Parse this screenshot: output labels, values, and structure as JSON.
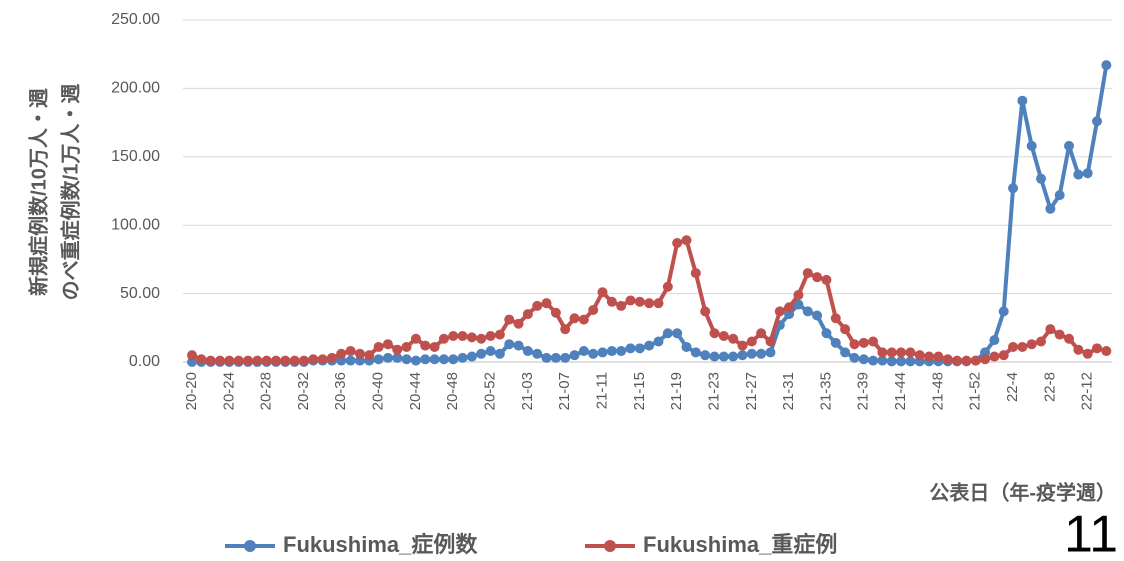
{
  "chart_data": {
    "type": "line",
    "y_axis_label": [
      "新規症例数/10万人・週",
      "のべ重症例数/1万人・週"
    ],
    "x_axis_label": "公表日（年-疫学週）",
    "page_number": "11",
    "categories": [
      "20-20",
      null,
      null,
      null,
      "20-24",
      null,
      null,
      null,
      "20-28",
      null,
      null,
      null,
      "20-32",
      null,
      null,
      null,
      "20-36",
      null,
      null,
      null,
      "20-40",
      null,
      null,
      null,
      "20-44",
      null,
      null,
      null,
      "20-48",
      null,
      null,
      null,
      "20-52",
      null,
      null,
      null,
      "21-03",
      null,
      null,
      null,
      "21-07",
      null,
      null,
      null,
      "21-11",
      null,
      null,
      null,
      "21-15",
      null,
      null,
      null,
      "21-19",
      null,
      null,
      null,
      "21-23",
      null,
      null,
      null,
      "21-27",
      null,
      null,
      null,
      "21-31",
      null,
      null,
      null,
      "21-35",
      null,
      null,
      null,
      "21-39",
      null,
      null,
      null,
      "21-44",
      null,
      null,
      null,
      "21-48",
      null,
      null,
      null,
      "21-52",
      null,
      null,
      null,
      "22-4",
      null,
      null,
      null,
      "22-8",
      null,
      null,
      null,
      "22-12",
      null,
      null
    ],
    "series": [
      {
        "name": "Fukushima_症例数",
        "color": "#4f81bd",
        "values": [
          0,
          0,
          0,
          0,
          0,
          0,
          0,
          0,
          0,
          0,
          0,
          0,
          0,
          1,
          1,
          1,
          1,
          1,
          1,
          1,
          2,
          3,
          3,
          2,
          1,
          2,
          2,
          2,
          2,
          3,
          4,
          6,
          8,
          6,
          13,
          12,
          8,
          6,
          3,
          3,
          3,
          5,
          8,
          6,
          7,
          8,
          8,
          10,
          10,
          12,
          15,
          21,
          21,
          11,
          7,
          5,
          4,
          4,
          4,
          5,
          6,
          6,
          7,
          27,
          35,
          42,
          37,
          34,
          21,
          14,
          7,
          3,
          2,
          1,
          1,
          0.5,
          0.5,
          0.5,
          0.5,
          0.5,
          0.5,
          0.5,
          0.5,
          0.5,
          1,
          7,
          16,
          37,
          127,
          191,
          158,
          134,
          112,
          122,
          158,
          137,
          138,
          176,
          217
        ]
      },
      {
        "name": "Fukushima_重症例",
        "color": "#c0504d",
        "values": [
          5,
          2,
          1,
          1,
          1,
          1,
          1,
          1,
          1,
          1,
          1,
          1,
          1,
          2,
          2,
          3,
          6,
          8,
          6,
          5,
          11,
          13,
          9,
          11,
          17,
          12,
          11,
          17,
          19,
          19,
          18,
          17,
          19,
          20,
          31,
          28,
          35,
          41,
          43,
          36,
          24,
          32,
          31,
          38,
          51,
          44,
          41,
          45,
          44,
          43,
          43,
          55,
          87,
          89,
          65,
          37,
          21,
          19,
          17,
          12,
          15,
          21,
          15,
          37,
          40,
          49,
          65,
          62,
          60,
          32,
          24,
          13,
          14,
          15,
          7,
          7,
          7,
          7,
          5,
          4,
          4,
          2,
          1,
          1,
          1,
          2,
          4,
          5,
          11,
          11,
          13,
          15,
          24,
          20,
          17,
          9,
          6,
          10,
          8
        ]
      }
    ],
    "ylim": [
      0,
      250
    ],
    "yticks": [
      {
        "value": 0,
        "label": "0.00"
      },
      {
        "value": 50,
        "label": "50.00"
      },
      {
        "value": 100,
        "label": "100.00"
      },
      {
        "value": 150,
        "label": "150.00"
      },
      {
        "value": 200,
        "label": "200.00"
      },
      {
        "value": 250,
        "label": "250.00"
      }
    ],
    "grid": true,
    "legend": "bottom"
  }
}
